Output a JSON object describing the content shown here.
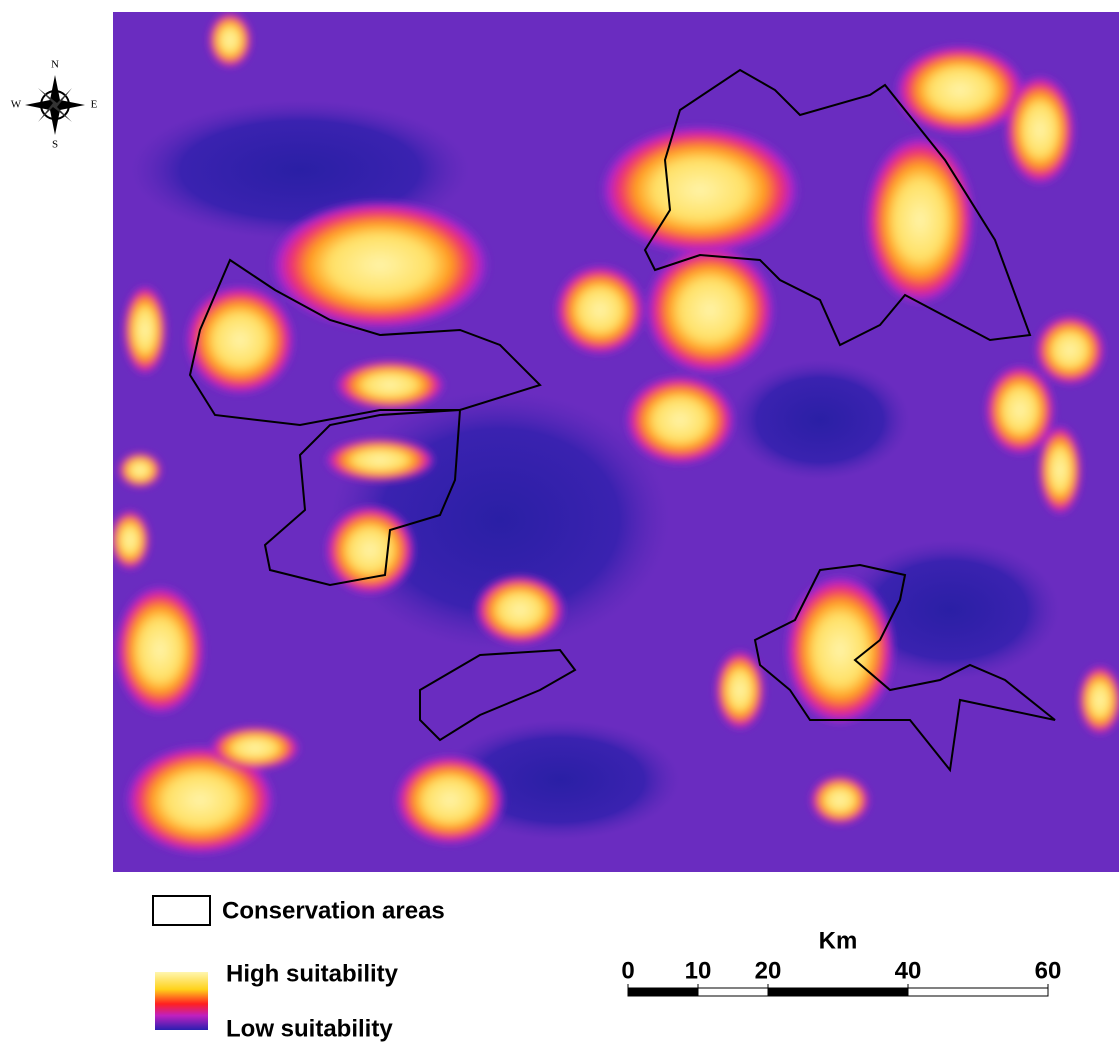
{
  "compass": {
    "north": "N",
    "south": "S",
    "west": "W",
    "east": "E"
  },
  "legend": {
    "conservation": "Conservation areas",
    "high": "High suitability",
    "low": "Low suitability"
  },
  "scale_bar": {
    "unit": "Km",
    "ticks": [
      0,
      10,
      20,
      40,
      60
    ]
  }
}
